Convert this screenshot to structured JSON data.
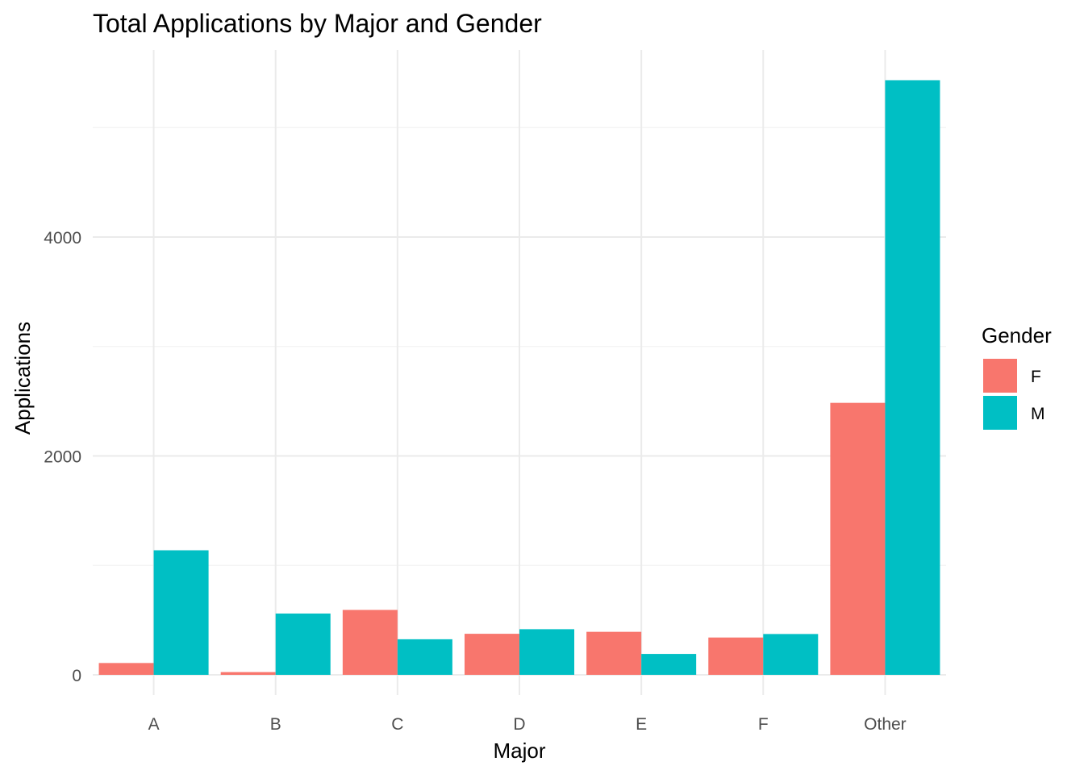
{
  "chart_data": {
    "type": "bar",
    "title": "Total Applications by Major and Gender",
    "xlabel": "Major",
    "ylabel": "Applications",
    "categories": [
      "A",
      "B",
      "C",
      "D",
      "E",
      "F",
      "Other"
    ],
    "series": [
      {
        "name": "F",
        "color": "#F8766D",
        "values": [
          108,
          25,
          593,
          375,
          393,
          341,
          2485
        ]
      },
      {
        "name": "M",
        "color": "#00BFC4",
        "values": [
          1138,
          560,
          325,
          417,
          191,
          373,
          5433
        ]
      }
    ],
    "ylim": [
      0,
      5700
    ],
    "yticks": [
      0,
      2000,
      4000
    ],
    "legend": {
      "title": "Gender",
      "position": "right"
    },
    "grid": true
  }
}
